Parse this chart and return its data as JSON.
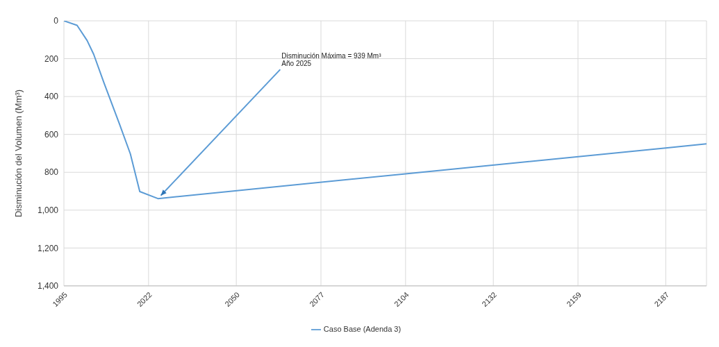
{
  "chart_data": {
    "type": "line",
    "ylabel": "Disminución del Volumen (Mm³)",
    "x": [
      1995,
      1999.2,
      2002.4,
      2004.5,
      2007.7,
      2012.7,
      2016.2,
      2019.2,
      2025,
      2104,
      2187,
      2200
    ],
    "series": [
      {
        "name": "Caso Base (Adenda 3)",
        "color": "#5b9bd5",
        "values": [
          0,
          24,
          104,
          177,
          324,
          544,
          703,
          902,
          939,
          808,
          672,
          650
        ]
      }
    ],
    "xlim": [
      1995,
      2200
    ],
    "xticks": [
      1995,
      2022,
      2050,
      2077,
      2104,
      2132,
      2159,
      2187
    ],
    "ylim": [
      1400,
      0
    ],
    "yticks": [
      0,
      200,
      400,
      600,
      800,
      {
        "value": 1000,
        "label": "1,000"
      },
      {
        "value": 1200,
        "label": "1,200"
      },
      {
        "value": 1400,
        "label": "1,400"
      }
    ],
    "annotations": [
      {
        "text": "Disminución Máxima = 939 Mm³\nAño 2025",
        "x": 2025,
        "y": 939
      }
    ],
    "grid": true,
    "legend": "bottom",
    "marker": "none",
    "line_style": "solid"
  }
}
